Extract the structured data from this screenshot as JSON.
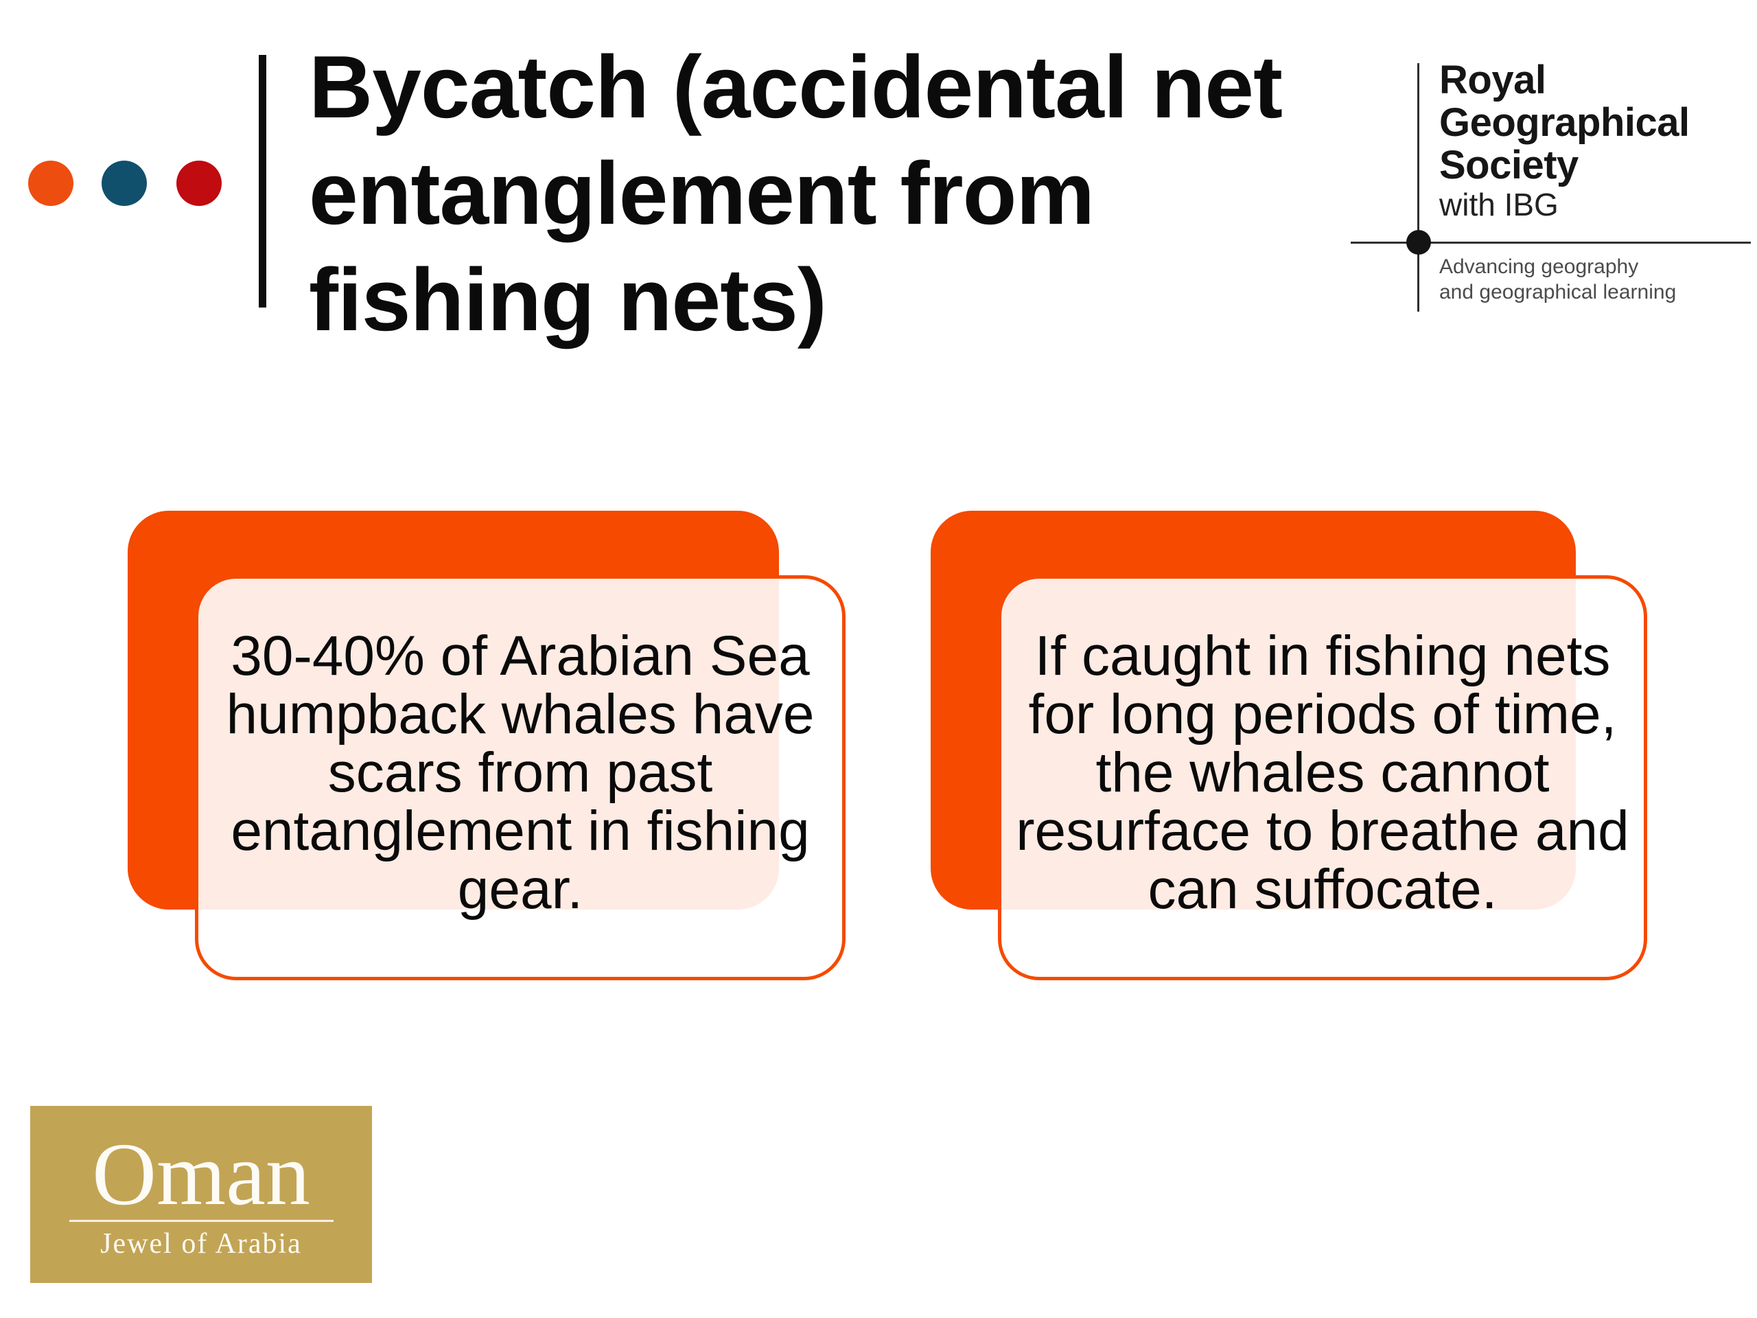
{
  "slide": {
    "title_lines": [
      "Bycatch (accidental net",
      "entanglement from",
      "fishing nets)"
    ],
    "accent_dots": [
      {
        "name": "orange-dot",
        "color": "#ee4d10"
      },
      {
        "name": "teal-dot",
        "color": "#10506c"
      },
      {
        "name": "red-dot",
        "color": "#c00b10"
      }
    ],
    "background_color": "#ffffff"
  },
  "rgs_logo": {
    "name_lines": [
      "Royal",
      "Geographical",
      "Society"
    ],
    "with_line": "with IBG",
    "tagline_lines": [
      "Advancing geography",
      "and geographical learning"
    ]
  },
  "cards": [
    {
      "text": "30-40% of Arabian Sea humpback whales have scars from past entanglement in fishing gear.",
      "back_color": "#f54a00",
      "tint_color": "#fbe9e3"
    },
    {
      "text": "If caught in fishing nets for long periods of time, the whales cannot resurface to breathe and can suffocate.",
      "back_color": "#f54a00",
      "tint_color": "#fbe9e3"
    }
  ],
  "oman_logo": {
    "title": "Oman",
    "subtitle": "Jewel of Arabia",
    "background_color": "#c2a455"
  }
}
